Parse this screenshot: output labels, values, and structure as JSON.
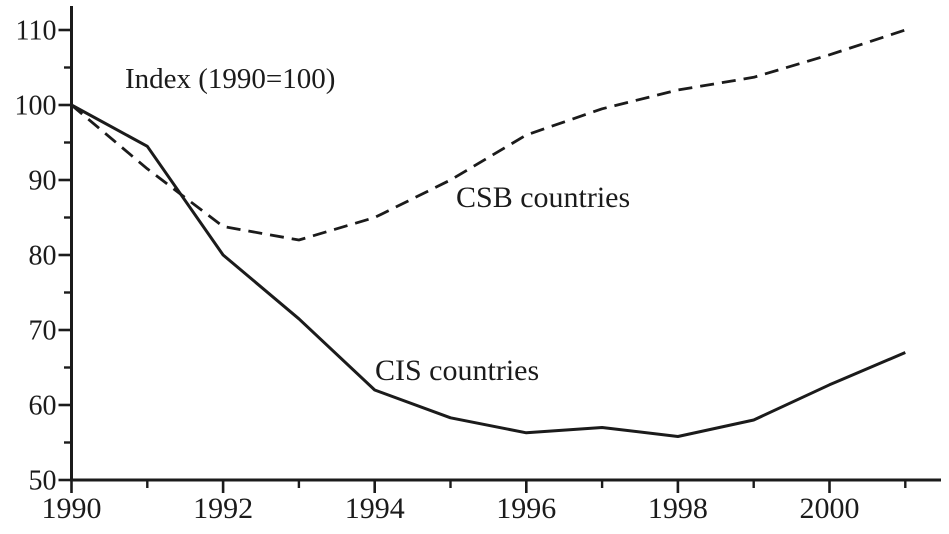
{
  "chart_data": {
    "type": "line",
    "title": "",
    "annotation": "Index (1990=100)",
    "xlabel": "",
    "ylabel": "",
    "x": [
      1990,
      1991,
      1992,
      1993,
      1994,
      1995,
      1996,
      1997,
      1998,
      1999,
      2000,
      2001
    ],
    "series": [
      {
        "name": "CSB countries",
        "line_style": "dashed",
        "values": [
          100,
          91.5,
          83.8,
          82,
          85,
          90,
          96,
          99.5,
          102,
          103.7,
          106.7,
          110
        ]
      },
      {
        "name": "CIS countries",
        "line_style": "solid",
        "values": [
          100,
          94.5,
          80,
          71.5,
          62,
          58.3,
          56.3,
          57,
          55.8,
          58,
          62.7,
          67
        ]
      }
    ],
    "xlim": [
      1990,
      2001
    ],
    "ylim": [
      50,
      110
    ],
    "y_major_ticks": [
      50,
      60,
      70,
      80,
      90,
      100,
      110
    ],
    "y_minor_ticks": [
      55,
      65,
      75,
      85,
      95,
      105
    ],
    "x_major_ticks": [
      1990,
      1992,
      1994,
      1996,
      1998,
      2000
    ],
    "x_minor_ticks": [
      1991,
      1993,
      1995,
      1997,
      1999,
      2001
    ],
    "grid": false,
    "legend_position": "inline-labels",
    "line_color": "#1b1b1b",
    "background_color": "#ffffff"
  }
}
